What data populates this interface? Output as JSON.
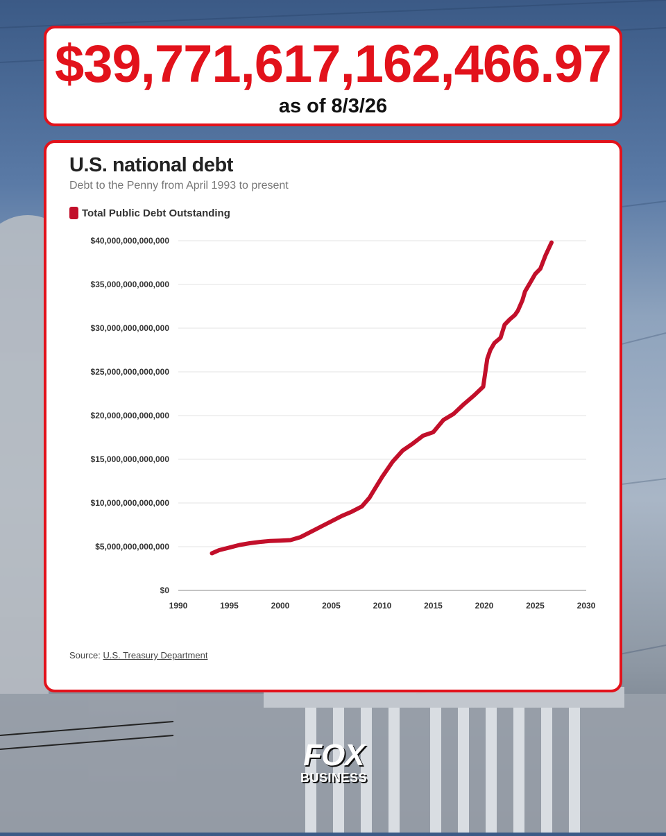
{
  "headline": {
    "amount": "$39,771,617,162,466.97",
    "as_of": "as of 8/3/26"
  },
  "colors": {
    "accent": "#e2121b",
    "series_line": "#c20f2a"
  },
  "chart_data": {
    "type": "line",
    "title": "U.S. national debt",
    "subtitle": "Debt to the Penny from April 1993 to present",
    "xlabel": "",
    "ylabel": "",
    "xlim": [
      1990,
      2030
    ],
    "ylim": [
      0,
      40000000000000
    ],
    "grid": true,
    "legend_position": "top-left",
    "x_ticks": [
      "1990",
      "1995",
      "2000",
      "2005",
      "2010",
      "2015",
      "2020",
      "2025",
      "2030"
    ],
    "y_ticks": [
      "$0",
      "$5,000,000,000,000",
      "$10,000,000,000,000",
      "$15,000,000,000,000",
      "$20,000,000,000,000",
      "$25,000,000,000,000",
      "$30,000,000,000,000",
      "$35,000,000,000,000",
      "$40,000,000,000,000"
    ],
    "series": [
      {
        "name": "Total Public Debt Outstanding",
        "x": [
          1993.3,
          1994,
          1995,
          1996,
          1997,
          1998,
          1999,
          2000,
          2001,
          2002,
          2003,
          2004,
          2005,
          2006,
          2007,
          2008,
          2008.75,
          2009,
          2010,
          2011,
          2012,
          2013,
          2014,
          2015,
          2016,
          2017,
          2018,
          2019,
          2019.9,
          2020.3,
          2020.6,
          2021,
          2021.6,
          2022,
          2022.5,
          2023,
          2023.3,
          2023.75,
          2024,
          2024.5,
          2025,
          2025.5,
          2026,
          2026.6
        ],
        "y": [
          4250000000000,
          4600000000000,
          4900000000000,
          5200000000000,
          5400000000000,
          5550000000000,
          5650000000000,
          5700000000000,
          5750000000000,
          6100000000000,
          6700000000000,
          7300000000000,
          7900000000000,
          8500000000000,
          9000000000000,
          9600000000000,
          10600000000000,
          11100000000000,
          13000000000000,
          14700000000000,
          16000000000000,
          16800000000000,
          17700000000000,
          18100000000000,
          19500000000000,
          20200000000000,
          21300000000000,
          22300000000000,
          23300000000000,
          26500000000000,
          27500000000000,
          28300000000000,
          28900000000000,
          30400000000000,
          31000000000000,
          31500000000000,
          32000000000000,
          33200000000000,
          34200000000000,
          35200000000000,
          36200000000000,
          36800000000000,
          38300000000000,
          39800000000000
        ]
      }
    ]
  },
  "source": {
    "prefix": "Source:",
    "link": "U.S. Treasury Department"
  },
  "logo": {
    "main": "FOX",
    "sub": "BUSINESS"
  }
}
